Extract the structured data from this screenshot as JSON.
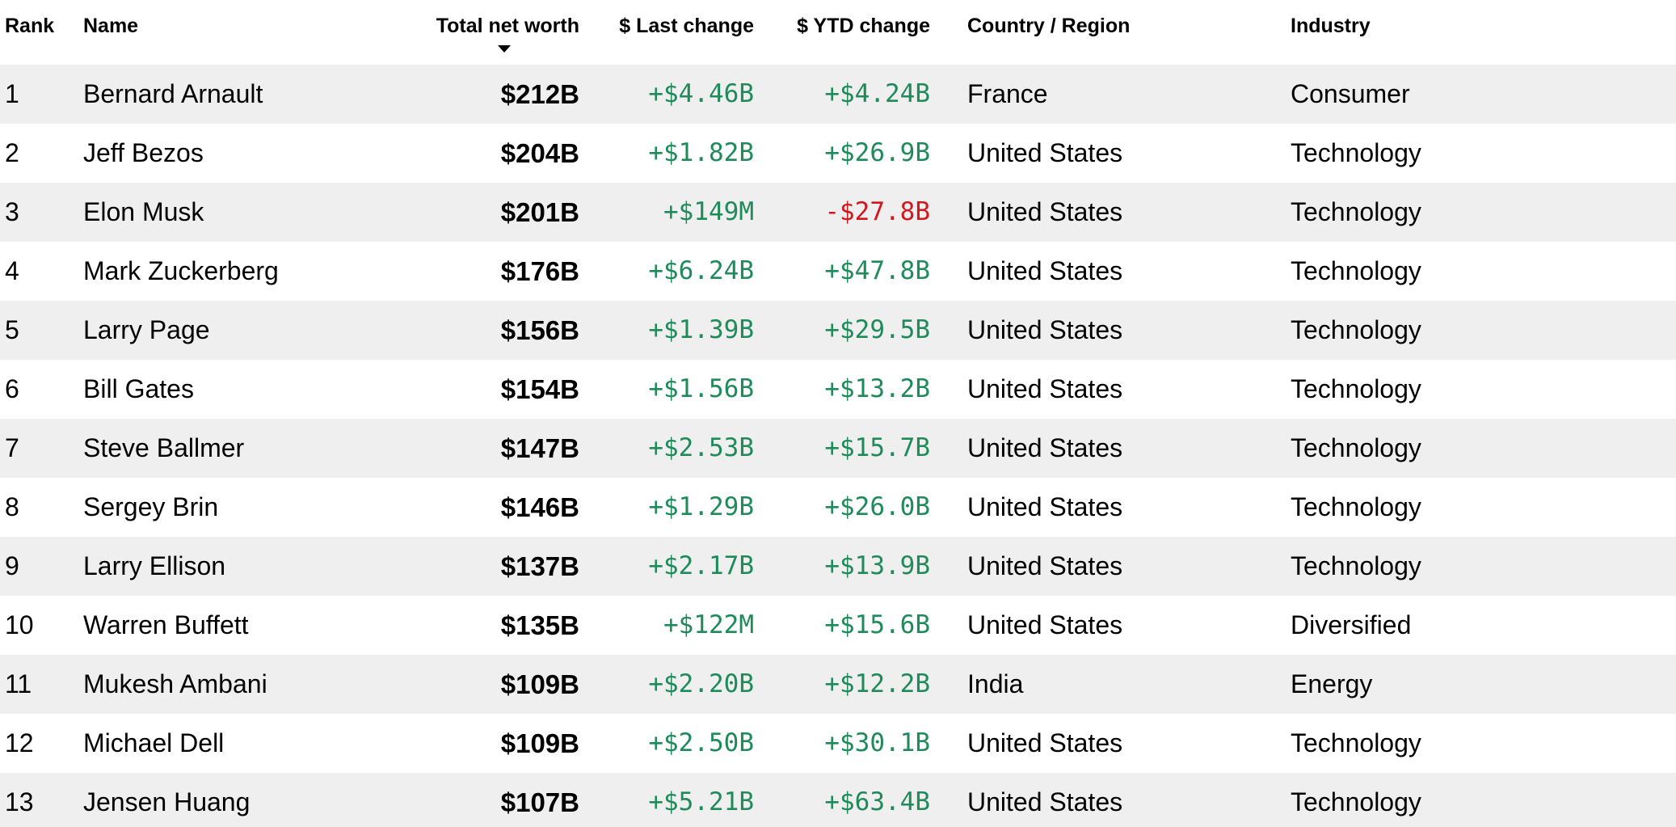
{
  "columns": {
    "rank": "Rank",
    "name": "Name",
    "total_net_worth": "Total net worth",
    "last_change": "$ Last change",
    "ytd_change": "$ YTD change",
    "country_region": "Country / Region",
    "industry": "Industry"
  },
  "sort": {
    "column": "total_net_worth",
    "direction": "descending",
    "icon": "sort-down-triangle-icon"
  },
  "colors": {
    "positive": "#1f8a5a",
    "negative": "#d0191f",
    "row_shade": "#efefef"
  },
  "rows": [
    {
      "rank": "1",
      "name": "Bernard Arnault",
      "total_net_worth": "$212B",
      "last_change": "+$4.46B",
      "ytd_change": "+$4.24B",
      "country_region": "France",
      "industry": "Consumer"
    },
    {
      "rank": "2",
      "name": "Jeff Bezos",
      "total_net_worth": "$204B",
      "last_change": "+$1.82B",
      "ytd_change": "+$26.9B",
      "country_region": "United States",
      "industry": "Technology"
    },
    {
      "rank": "3",
      "name": "Elon Musk",
      "total_net_worth": "$201B",
      "last_change": "+$149M",
      "ytd_change": "-$27.8B",
      "country_region": "United States",
      "industry": "Technology"
    },
    {
      "rank": "4",
      "name": "Mark Zuckerberg",
      "total_net_worth": "$176B",
      "last_change": "+$6.24B",
      "ytd_change": "+$47.8B",
      "country_region": "United States",
      "industry": "Technology"
    },
    {
      "rank": "5",
      "name": "Larry Page",
      "total_net_worth": "$156B",
      "last_change": "+$1.39B",
      "ytd_change": "+$29.5B",
      "country_region": "United States",
      "industry": "Technology"
    },
    {
      "rank": "6",
      "name": "Bill Gates",
      "total_net_worth": "$154B",
      "last_change": "+$1.56B",
      "ytd_change": "+$13.2B",
      "country_region": "United States",
      "industry": "Technology"
    },
    {
      "rank": "7",
      "name": "Steve Ballmer",
      "total_net_worth": "$147B",
      "last_change": "+$2.53B",
      "ytd_change": "+$15.7B",
      "country_region": "United States",
      "industry": "Technology"
    },
    {
      "rank": "8",
      "name": "Sergey Brin",
      "total_net_worth": "$146B",
      "last_change": "+$1.29B",
      "ytd_change": "+$26.0B",
      "country_region": "United States",
      "industry": "Technology"
    },
    {
      "rank": "9",
      "name": "Larry Ellison",
      "total_net_worth": "$137B",
      "last_change": "+$2.17B",
      "ytd_change": "+$13.9B",
      "country_region": "United States",
      "industry": "Technology"
    },
    {
      "rank": "10",
      "name": "Warren Buffett",
      "total_net_worth": "$135B",
      "last_change": "+$122M",
      "ytd_change": "+$15.6B",
      "country_region": "United States",
      "industry": "Diversified"
    },
    {
      "rank": "11",
      "name": "Mukesh Ambani",
      "total_net_worth": "$109B",
      "last_change": "+$2.20B",
      "ytd_change": "+$12.2B",
      "country_region": "India",
      "industry": "Energy"
    },
    {
      "rank": "12",
      "name": "Michael Dell",
      "total_net_worth": "$109B",
      "last_change": "+$2.50B",
      "ytd_change": "+$30.1B",
      "country_region": "United States",
      "industry": "Technology"
    },
    {
      "rank": "13",
      "name": "Jensen Huang",
      "total_net_worth": "$107B",
      "last_change": "+$5.21B",
      "ytd_change": "+$63.4B",
      "country_region": "United States",
      "industry": "Technology"
    }
  ]
}
